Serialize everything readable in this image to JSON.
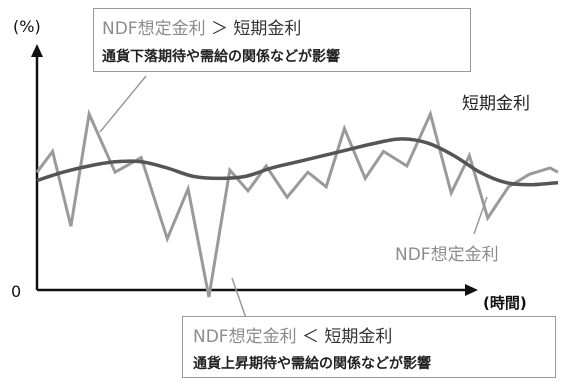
{
  "chart_data": {
    "type": "line",
    "ylabel": "(%)",
    "xlabel": "(時間)",
    "y_ticks": [
      "0"
    ],
    "series": [
      {
        "name": "短期金利",
        "color": "#555555",
        "x": [
          0,
          1,
          2,
          3,
          4,
          5,
          6,
          7,
          8,
          9,
          10,
          11,
          12,
          13,
          14,
          15,
          16,
          17,
          18,
          19,
          20
        ],
        "values": [
          5.6,
          6.0,
          6.3,
          6.5,
          6.5,
          6.2,
          5.8,
          5.7,
          5.8,
          6.2,
          6.5,
          6.8,
          7.1,
          7.4,
          7.6,
          7.4,
          6.8,
          6.0,
          5.5,
          5.4,
          5.5
        ]
      },
      {
        "name": "NDF想定金利",
        "color": "#9a9a9a",
        "x": [
          0,
          0.6,
          1.3,
          2,
          3,
          4,
          5,
          5.8,
          6.6,
          7.4,
          8.1,
          8.8,
          9.6,
          10.4,
          11.1,
          11.8,
          12.6,
          13.3,
          14.2,
          15.1,
          15.9,
          16.6,
          17.3,
          18.1,
          18.9,
          19.7,
          20
        ],
        "values": [
          6.0,
          7.0,
          3.4,
          8.8,
          6.0,
          6.7,
          2.8,
          5.2,
          0.0,
          6.1,
          5.1,
          6.3,
          4.8,
          6.0,
          5.3,
          8.1,
          5.7,
          7.0,
          6.3,
          8.8,
          5.0,
          6.8,
          3.8,
          5.3,
          5.9,
          6.2,
          6.0
        ]
      }
    ],
    "xlim": [
      0,
      20
    ],
    "ylim": [
      0,
      10
    ],
    "grid": false
  },
  "annotations": {
    "top": {
      "ndf": "NDF想定金利",
      "op": " ＞ ",
      "rate": "短期金利",
      "line2": "通貨下落期待や需給の関係などが影響"
    },
    "bottom": {
      "ndf": "NDF想定金利",
      "op": " ＜ ",
      "rate": "短期金利",
      "line2": "通貨上昇期待や需給の関係などが影響"
    }
  },
  "labels": {
    "short_rate": "短期金利",
    "ndf_rate": "NDF想定金利"
  }
}
